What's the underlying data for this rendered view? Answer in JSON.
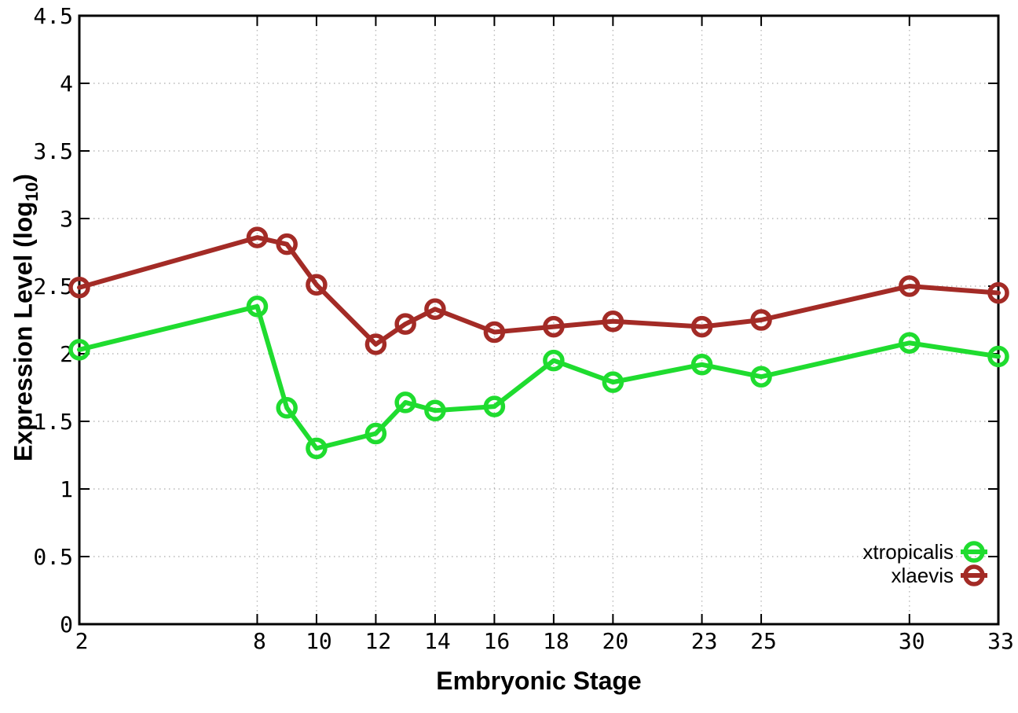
{
  "chart_data": {
    "type": "line",
    "title": "",
    "xlabel": "Embryonic Stage",
    "ylabel": {
      "prefix": "Expression Level (log",
      "sub": "10",
      "suffix": ")"
    },
    "x": [
      2,
      8,
      9,
      10,
      12,
      13,
      14,
      16,
      18,
      20,
      23,
      25,
      30,
      33
    ],
    "series": [
      {
        "name": "xtropicalis",
        "color": "#1fdc2f",
        "values": [
          2.03,
          2.35,
          1.6,
          1.3,
          1.41,
          1.64,
          1.58,
          1.61,
          1.95,
          1.79,
          1.92,
          1.83,
          2.08,
          1.98
        ]
      },
      {
        "name": "xlaevis",
        "color": "#a32b26",
        "values": [
          2.49,
          2.86,
          2.81,
          2.51,
          2.07,
          2.22,
          2.33,
          2.16,
          2.2,
          2.24,
          2.2,
          2.25,
          2.5,
          2.45
        ]
      }
    ],
    "xlim": [
      2,
      33
    ],
    "ylim": [
      0,
      4.5
    ],
    "xticks": [
      2,
      8,
      10,
      12,
      14,
      16,
      18,
      20,
      23,
      25,
      30,
      33
    ],
    "yticks": [
      0,
      0.5,
      1,
      1.5,
      2,
      2.5,
      3,
      3.5,
      4,
      4.5
    ],
    "grid": true,
    "legend_position": "inside-bottom-right",
    "marker": "open-circle",
    "colors": {
      "background": "#ffffff",
      "grid": "#b9b9b9",
      "axis": "#000000",
      "text": "#000000"
    }
  }
}
